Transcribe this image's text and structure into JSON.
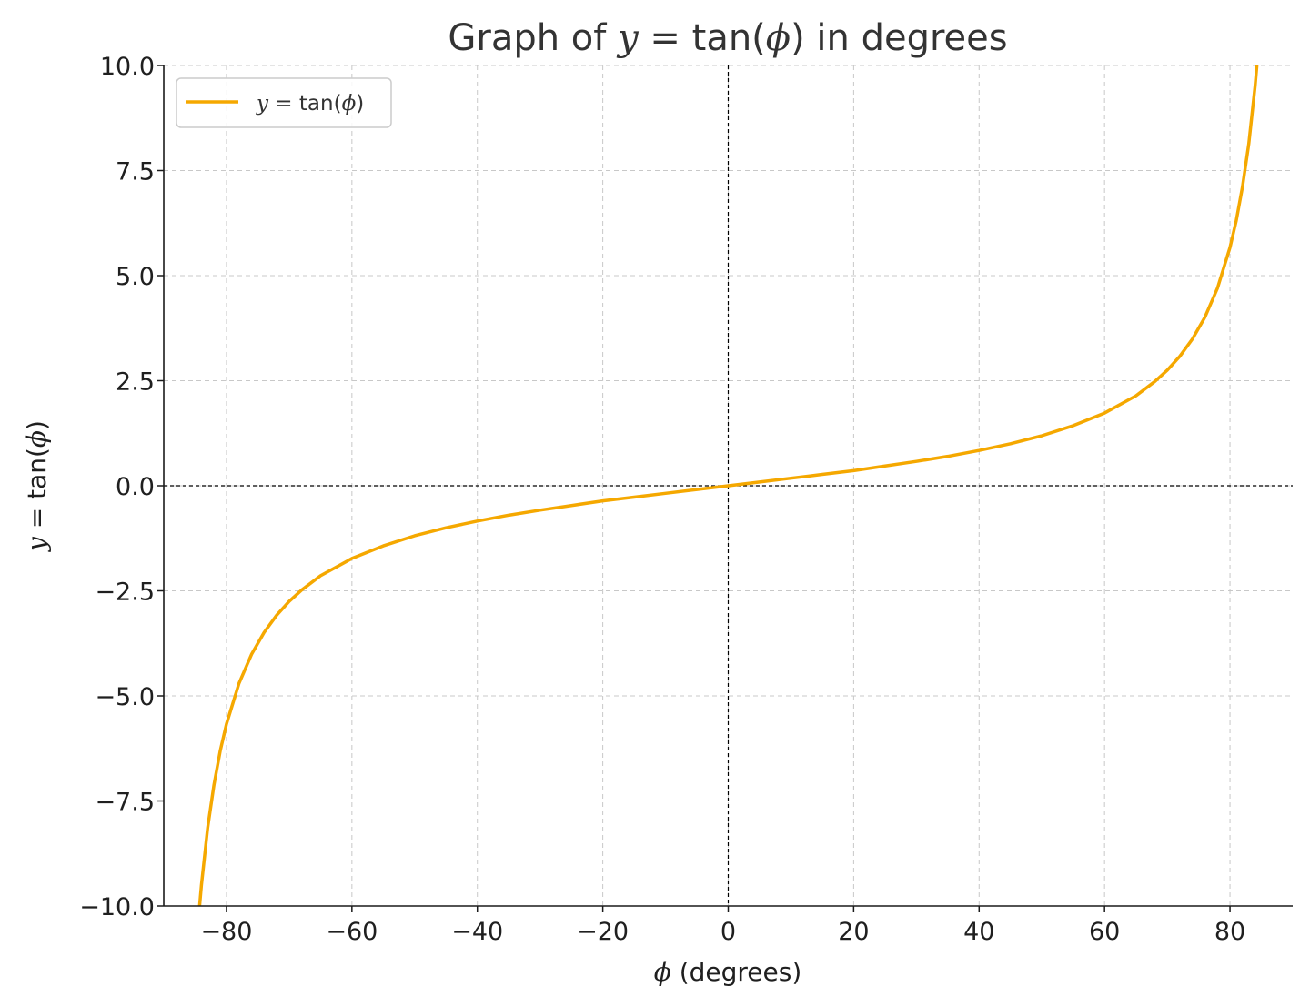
{
  "chart_data": {
    "type": "line",
    "title": {
      "prefix": "Graph of ",
      "math_var": "y",
      "math_eq": " = tan(",
      "math_phi": "ϕ",
      "math_close": ")",
      "suffix": " in degrees"
    },
    "xlabel": {
      "phi": "ϕ",
      "rest": " (degrees)"
    },
    "ylabel": {
      "var": "y",
      "eq": " = tan(",
      "phi": "ϕ",
      "close": ")"
    },
    "xlim": [
      -90,
      90
    ],
    "ylim": [
      -10,
      10
    ],
    "x_ticks": [
      -80,
      -60,
      -40,
      -20,
      0,
      20,
      40,
      60,
      80
    ],
    "x_tick_labels": [
      "−80",
      "−60",
      "−40",
      "−20",
      "0",
      "20",
      "40",
      "60",
      "80"
    ],
    "y_ticks": [
      10,
      7.5,
      5,
      2.5,
      0,
      -2.5,
      -5,
      -7.5,
      -10
    ],
    "y_tick_labels": [
      "10.0",
      "7.5",
      "5.0",
      "2.5",
      "0.0",
      "−2.5",
      "−5.0",
      "−7.5",
      "−10.0"
    ],
    "grid": true,
    "reference_lines": {
      "x": 0,
      "y": 0
    },
    "legend_position": "top-left",
    "series": [
      {
        "name": {
          "var": "y",
          "eq": " = tan(",
          "phi": "ϕ",
          "close": ")"
        },
        "color": "#f5a800",
        "x": [
          -84.3,
          -84,
          -83,
          -82,
          -81,
          -80,
          -78,
          -76,
          -74,
          -72,
          -70,
          -68,
          -65,
          -60,
          -55,
          -50,
          -45,
          -40,
          -35,
          -30,
          -25,
          -20,
          -15,
          -10,
          -5,
          0,
          5,
          10,
          15,
          20,
          25,
          30,
          35,
          40,
          45,
          50,
          55,
          60,
          65,
          68,
          70,
          72,
          74,
          76,
          78,
          80,
          81,
          82,
          83,
          84,
          84.3
        ],
        "y": [
          -10.02,
          -9.51,
          -8.14,
          -7.12,
          -6.31,
          -5.67,
          -4.7,
          -4.01,
          -3.49,
          -3.08,
          -2.75,
          -2.48,
          -2.14,
          -1.73,
          -1.43,
          -1.19,
          -1.0,
          -0.84,
          -0.7,
          -0.58,
          -0.47,
          -0.36,
          -0.27,
          -0.18,
          -0.09,
          0,
          0.09,
          0.18,
          0.27,
          0.36,
          0.47,
          0.58,
          0.7,
          0.84,
          1.0,
          1.19,
          1.43,
          1.73,
          2.14,
          2.48,
          2.75,
          3.08,
          3.49,
          4.01,
          4.7,
          5.67,
          6.31,
          7.12,
          8.14,
          9.51,
          10.02
        ]
      }
    ]
  }
}
